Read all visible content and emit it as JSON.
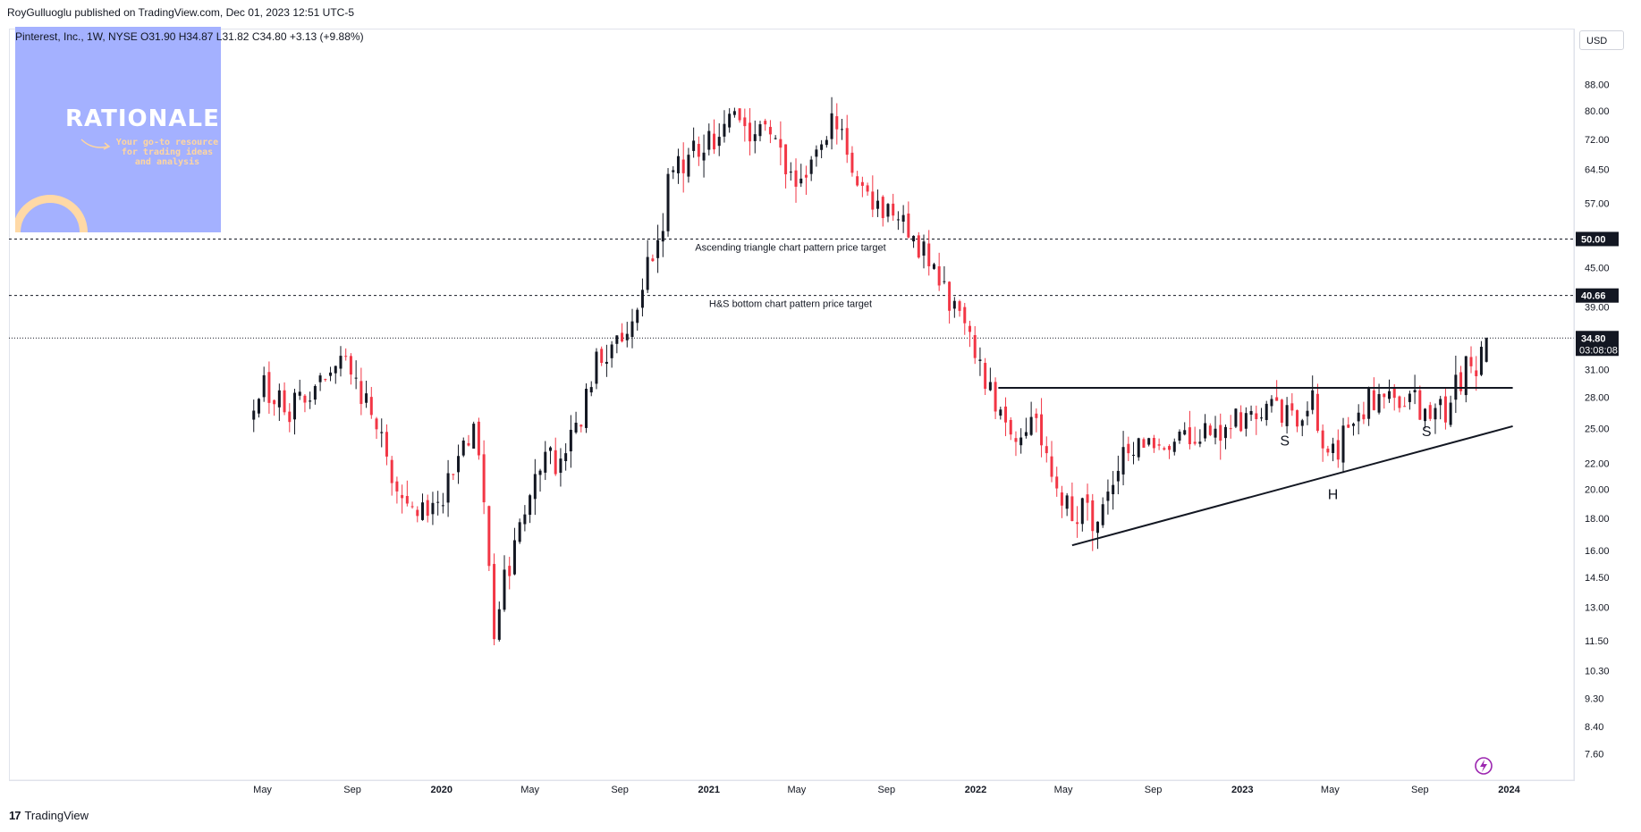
{
  "header": {
    "published_by": "RoyGulluoglu published on TradingView.com, Dec 01, 2023 12:51 UTC-5"
  },
  "symbol_info": {
    "text": "Pinterest, Inc., 1W, NYSE  O31.90  H34.87  L31.82  C34.80  +3.13 (+9.88%)"
  },
  "logo_box": {
    "title": "RATIONALE",
    "subtitle": "Your go-to resource for trading ideas and analysis"
  },
  "currency": "USD",
  "footer": {
    "brand": "TradingView"
  },
  "colors": {
    "up": "#131722",
    "down": "#f23645",
    "accent": "#a4b1ff"
  },
  "chart_data": {
    "type": "candlestick",
    "title": "",
    "xlabel": "",
    "ylabel": "",
    "y_scale": "log",
    "ylim": [
      6.9,
      108
    ],
    "y_ticks": [
      "88.00",
      "80.00",
      "72.00",
      "64.50",
      "57.00",
      "50.00",
      "45.00",
      "39.00",
      "34.80",
      "31.00",
      "28.00",
      "25.00",
      "22.00",
      "20.00",
      "18.00",
      "16.00",
      "14.50",
      "13.00",
      "11.50",
      "10.30",
      "9.30",
      "8.40",
      "7.60"
    ],
    "x_ticks": [
      {
        "label": "May",
        "date": "2019-05-01",
        "bold": false
      },
      {
        "label": "Sep",
        "date": "2019-09-01",
        "bold": false
      },
      {
        "label": "2020",
        "date": "2020-01-01",
        "bold": true
      },
      {
        "label": "May",
        "date": "2020-05-01",
        "bold": false
      },
      {
        "label": "Sep",
        "date": "2020-09-01",
        "bold": false
      },
      {
        "label": "2021",
        "date": "2021-01-01",
        "bold": true
      },
      {
        "label": "May",
        "date": "2021-05-01",
        "bold": false
      },
      {
        "label": "Sep",
        "date": "2021-09-01",
        "bold": false
      },
      {
        "label": "2022",
        "date": "2022-01-01",
        "bold": true
      },
      {
        "label": "May",
        "date": "2022-05-01",
        "bold": false
      },
      {
        "label": "Sep",
        "date": "2022-09-01",
        "bold": false
      },
      {
        "label": "2023",
        "date": "2023-01-01",
        "bold": true
      },
      {
        "label": "May",
        "date": "2023-05-01",
        "bold": false
      },
      {
        "label": "Sep",
        "date": "2023-09-01",
        "bold": false
      },
      {
        "label": "2024",
        "date": "2024-01-01",
        "bold": true
      }
    ],
    "price_path": [
      [
        "2019-04-19",
        25.5
      ],
      [
        "2019-05-10",
        29
      ],
      [
        "2019-06-07",
        27
      ],
      [
        "2019-07-05",
        27.5
      ],
      [
        "2019-08-01",
        30
      ],
      [
        "2019-08-30",
        32
      ],
      [
        "2019-10-01",
        27
      ],
      [
        "2019-11-01",
        21
      ],
      [
        "2019-12-10",
        18.5
      ],
      [
        "2020-01-15",
        20
      ],
      [
        "2020-02-20",
        25.5
      ],
      [
        "2020-03-10",
        18
      ],
      [
        "2020-03-20",
        12
      ],
      [
        "2020-04-01",
        14
      ],
      [
        "2020-05-01",
        19
      ],
      [
        "2020-06-01",
        22
      ],
      [
        "2020-07-15",
        25
      ],
      [
        "2020-08-07",
        32
      ],
      [
        "2020-09-01",
        34
      ],
      [
        "2020-10-01",
        38
      ],
      [
        "2020-10-30",
        50
      ],
      [
        "2020-11-15",
        63
      ],
      [
        "2020-12-15",
        67
      ],
      [
        "2021-01-15",
        72
      ],
      [
        "2021-02-12",
        82
      ],
      [
        "2021-03-10",
        72
      ],
      [
        "2021-04-01",
        74
      ],
      [
        "2021-05-10",
        58
      ],
      [
        "2021-06-01",
        70
      ],
      [
        "2021-07-01",
        80
      ],
      [
        "2021-07-30",
        61
      ],
      [
        "2021-08-20",
        57
      ],
      [
        "2021-10-01",
        53
      ],
      [
        "2021-10-29",
        47
      ],
      [
        "2021-12-01",
        40
      ],
      [
        "2022-01-01",
        34
      ],
      [
        "2022-02-01",
        28
      ],
      [
        "2022-03-01",
        25
      ],
      [
        "2022-04-01",
        25
      ],
      [
        "2022-05-10",
        19
      ],
      [
        "2022-06-01",
        18.5
      ],
      [
        "2022-07-01",
        18
      ],
      [
        "2022-08-01",
        23
      ],
      [
        "2022-09-01",
        24
      ],
      [
        "2022-10-01",
        24
      ],
      [
        "2022-11-01",
        25
      ],
      [
        "2022-12-01",
        25
      ],
      [
        "2023-01-01",
        26
      ],
      [
        "2023-02-15",
        27
      ],
      [
        "2023-03-15",
        26
      ],
      [
        "2023-04-15",
        27
      ],
      [
        "2023-05-01",
        22
      ],
      [
        "2023-06-01",
        25
      ],
      [
        "2023-07-01",
        28
      ],
      [
        "2023-08-01",
        28
      ],
      [
        "2023-09-01",
        27
      ],
      [
        "2023-10-15",
        26
      ],
      [
        "2023-10-27",
        30
      ],
      [
        "2023-11-24",
        31.7
      ],
      [
        "2023-12-01",
        34.8
      ]
    ],
    "last_candle": {
      "open": 31.9,
      "high": 34.87,
      "low": 31.82,
      "close": 34.8
    },
    "horizontal_levels": [
      {
        "value": 50.0,
        "label": "Ascending triangle chart pattern price target"
      },
      {
        "value": 40.66,
        "label": "H&S bottom chart pattern price target"
      }
    ],
    "price_badges": [
      {
        "value": "50.00"
      },
      {
        "value": "40.66"
      },
      {
        "value": "34.80",
        "countdown": "03:08:08"
      }
    ],
    "neckline": {
      "from": [
        "2022-02-01",
        29.0
      ],
      "to": [
        "2024-01-06",
        29.0
      ]
    },
    "support_line": {
      "from": [
        "2022-05-13",
        16.3
      ],
      "to": [
        "2024-01-06",
        25.2
      ]
    },
    "pattern_labels": [
      {
        "text": "S",
        "date": "2023-02-28",
        "value": 23.5
      },
      {
        "text": "H",
        "date": "2023-05-05",
        "value": 19.3
      },
      {
        "text": "S",
        "date": "2023-09-10",
        "value": 24.3
      }
    ]
  }
}
